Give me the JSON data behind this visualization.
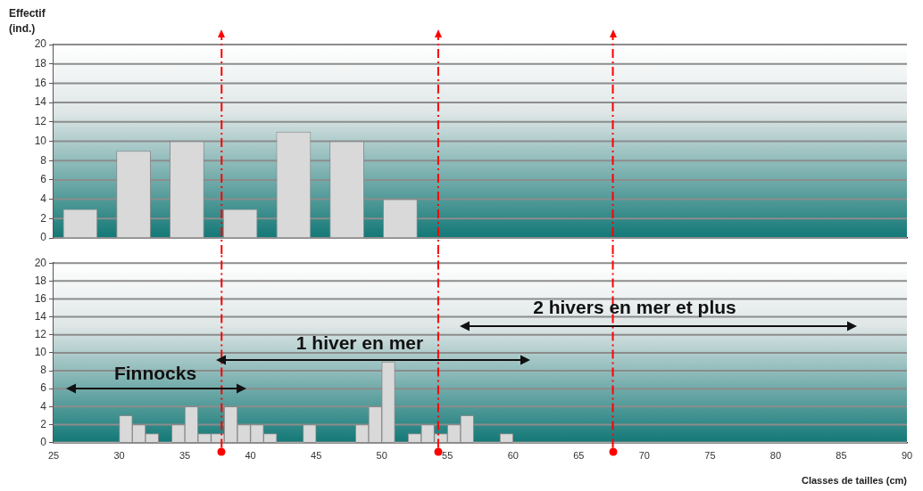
{
  "chart_data": [
    {
      "type": "bar",
      "ylabel": "Effectif\n(ind.)",
      "categories": [
        null,
        null,
        null,
        null,
        null,
        null,
        null,
        null,
        null,
        null,
        null,
        null,
        null,
        null,
        null,
        null
      ],
      "values": [
        3,
        9,
        10,
        3,
        11,
        10,
        4,
        null,
        null,
        null,
        null,
        null,
        null,
        null,
        null,
        null
      ],
      "color": "#d9d9d9",
      "ylim": [
        0,
        20
      ],
      "yticks": [
        0,
        2,
        4,
        6,
        8,
        10,
        12,
        14,
        16,
        18,
        20
      ],
      "grid": "y",
      "tick_labels": "y"
    },
    {
      "type": "histogram",
      "xlabel": "Classes de tailles (cm)",
      "bins": [
        25,
        26,
        27,
        28,
        29,
        30,
        31,
        32,
        33,
        34,
        35,
        36,
        37,
        38,
        39,
        40,
        41,
        42,
        43,
        44,
        45,
        46,
        47,
        48,
        49,
        50,
        51,
        52,
        53,
        54,
        55,
        56,
        57,
        58,
        59,
        60,
        61,
        62,
        63,
        64,
        65,
        66,
        67,
        68,
        69,
        70,
        71,
        72,
        73,
        74,
        75,
        76,
        77,
        78,
        79,
        80,
        81,
        82,
        83,
        84,
        85,
        86,
        87,
        88,
        89,
        90
      ],
      "values": [
        0,
        0,
        0,
        0,
        0,
        3,
        2,
        1,
        0,
        2,
        4,
        1,
        1,
        4,
        2,
        2,
        1,
        0,
        0,
        2,
        0,
        0,
        0,
        2,
        4,
        9,
        0,
        1,
        2,
        1,
        2,
        3,
        0,
        0,
        1,
        0,
        0,
        0,
        0,
        0,
        0,
        0,
        0,
        0,
        0,
        0,
        0,
        0,
        0,
        0,
        0,
        0,
        0,
        0,
        0,
        0,
        0,
        0,
        0,
        0,
        0,
        0,
        0,
        0,
        0
      ],
      "color": "#d9d9d9",
      "xlim": [
        25,
        90
      ],
      "xticks": [
        25,
        30,
        35,
        40,
        45,
        50,
        55,
        60,
        65,
        70,
        75,
        80,
        85,
        90
      ],
      "ylim": [
        0,
        20
      ],
      "yticks": [
        0,
        2,
        4,
        6,
        8,
        10,
        12,
        14,
        16,
        18,
        20
      ],
      "grid": "y",
      "ref_lines": [
        {
          "axis": "x",
          "value": 37.8,
          "color": "#ff0000",
          "line_style": "dashed"
        },
        {
          "axis": "x",
          "value": 54.3,
          "color": "#ff0000",
          "line_style": "dashed"
        },
        {
          "axis": "x",
          "value": 67.6,
          "color": "#ff0000",
          "line_style": "dashed"
        }
      ],
      "annotations": [
        "Finnocks",
        "1 hiver en mer",
        "2 hivers en mer et plus"
      ]
    }
  ]
}
